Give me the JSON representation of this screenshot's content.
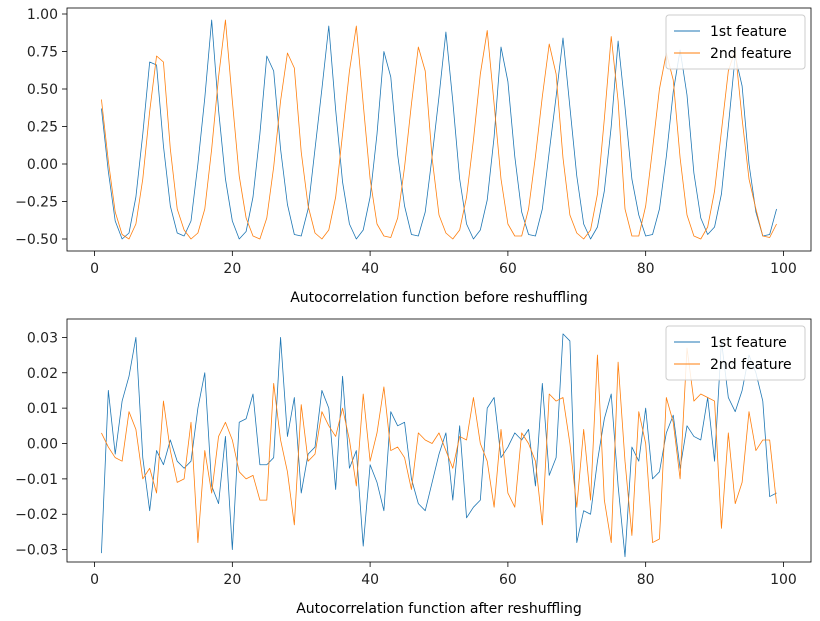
{
  "chart_data": [
    {
      "type": "line",
      "xlabel": "Autocorrelation function before reshuffling",
      "ylabel": "",
      "xlim": [
        -4,
        104
      ],
      "ylim": [
        -0.58,
        1.04
      ],
      "xticks": [
        0,
        20,
        40,
        60,
        80,
        100
      ],
      "yticks": [
        -0.5,
        -0.25,
        0.0,
        0.25,
        0.5,
        0.75,
        1.0
      ],
      "ytick_labels": [
        "−0.50",
        "−0.25",
        "0.00",
        "0.25",
        "0.50",
        "0.75",
        "1.00"
      ],
      "legend_position": "top-right",
      "grid": false,
      "x": [
        1,
        2,
        3,
        4,
        5,
        6,
        7,
        8,
        9,
        10,
        11,
        12,
        13,
        14,
        15,
        16,
        17,
        18,
        19,
        20,
        21,
        22,
        23,
        24,
        25,
        26,
        27,
        28,
        29,
        30,
        31,
        32,
        33,
        34,
        35,
        36,
        37,
        38,
        39,
        40,
        41,
        42,
        43,
        44,
        45,
        46,
        47,
        48,
        49,
        50,
        51,
        52,
        53,
        54,
        55,
        56,
        57,
        58,
        59,
        60,
        61,
        62,
        63,
        64,
        65,
        66,
        67,
        68,
        69,
        70,
        71,
        72,
        73,
        74,
        75,
        76,
        77,
        78,
        79,
        80,
        81,
        82,
        83,
        84,
        85,
        86,
        87,
        88,
        89,
        90,
        91,
        92,
        93,
        94,
        95,
        96,
        97,
        98,
        99
      ],
      "series": [
        {
          "name": "1st feature",
          "color": "#1f77b4",
          "values": [
            0.37,
            -0.05,
            -0.38,
            -0.5,
            -0.46,
            -0.22,
            0.2,
            0.68,
            0.66,
            0.12,
            -0.28,
            -0.46,
            -0.48,
            -0.38,
            0.0,
            0.44,
            0.96,
            0.36,
            -0.1,
            -0.38,
            -0.5,
            -0.45,
            -0.22,
            0.2,
            0.72,
            0.62,
            0.1,
            -0.27,
            -0.47,
            -0.48,
            -0.3,
            0.1,
            0.5,
            0.92,
            0.36,
            -0.12,
            -0.4,
            -0.5,
            -0.44,
            -0.22,
            0.2,
            0.75,
            0.58,
            0.06,
            -0.28,
            -0.47,
            -0.48,
            -0.32,
            0.05,
            0.45,
            0.88,
            0.42,
            -0.1,
            -0.4,
            -0.5,
            -0.44,
            -0.24,
            0.18,
            0.78,
            0.55,
            0.05,
            -0.32,
            -0.47,
            -0.48,
            -0.3,
            0.08,
            0.45,
            0.84,
            0.38,
            -0.08,
            -0.4,
            -0.5,
            -0.42,
            -0.18,
            0.25,
            0.82,
            0.38,
            -0.1,
            -0.34,
            -0.48,
            -0.47,
            -0.3,
            0.05,
            0.48,
            0.76,
            0.46,
            -0.06,
            -0.36,
            -0.47,
            -0.42,
            -0.2,
            0.25,
            0.72,
            0.52,
            0.0,
            -0.32,
            -0.48,
            -0.47,
            -0.3
          ]
        },
        {
          "name": "2nd feature",
          "color": "#ff7f0e",
          "values": [
            0.43,
            0.02,
            -0.32,
            -0.47,
            -0.5,
            -0.4,
            -0.1,
            0.35,
            0.72,
            0.68,
            0.1,
            -0.3,
            -0.44,
            -0.5,
            -0.46,
            -0.3,
            0.1,
            0.58,
            0.96,
            0.42,
            -0.08,
            -0.36,
            -0.48,
            -0.5,
            -0.36,
            -0.02,
            0.42,
            0.74,
            0.64,
            0.08,
            -0.28,
            -0.46,
            -0.5,
            -0.44,
            -0.22,
            0.2,
            0.62,
            0.92,
            0.4,
            -0.1,
            -0.4,
            -0.48,
            -0.49,
            -0.36,
            -0.02,
            0.4,
            0.78,
            0.62,
            0.04,
            -0.34,
            -0.46,
            -0.5,
            -0.44,
            -0.22,
            0.16,
            0.6,
            0.89,
            0.4,
            -0.1,
            -0.4,
            -0.48,
            -0.48,
            -0.3,
            0.05,
            0.45,
            0.8,
            0.6,
            0.04,
            -0.34,
            -0.46,
            -0.5,
            -0.44,
            -0.2,
            0.3,
            0.85,
            0.42,
            -0.3,
            -0.48,
            -0.48,
            -0.28,
            0.1,
            0.5,
            0.74,
            0.56,
            0.04,
            -0.34,
            -0.48,
            -0.5,
            -0.42,
            -0.18,
            0.22,
            0.62,
            0.76,
            0.3,
            -0.1,
            -0.3,
            -0.48,
            -0.49,
            -0.4
          ]
        }
      ]
    },
    {
      "type": "line",
      "xlabel": "Autocorrelation function after reshuffling",
      "ylabel": "",
      "xlim": [
        -4,
        104
      ],
      "ylim": [
        -0.0335,
        0.0352
      ],
      "xticks": [
        0,
        20,
        40,
        60,
        80,
        100
      ],
      "yticks": [
        -0.03,
        -0.02,
        -0.01,
        0.0,
        0.01,
        0.02,
        0.03
      ],
      "ytick_labels": [
        "−0.03",
        "−0.02",
        "−0.01",
        "0.00",
        "0.01",
        "0.02",
        "0.03"
      ],
      "legend_position": "top-right",
      "grid": false,
      "x": [
        1,
        2,
        3,
        4,
        5,
        6,
        7,
        8,
        9,
        10,
        11,
        12,
        13,
        14,
        15,
        16,
        17,
        18,
        19,
        20,
        21,
        22,
        23,
        24,
        25,
        26,
        27,
        28,
        29,
        30,
        31,
        32,
        33,
        34,
        35,
        36,
        37,
        38,
        39,
        40,
        41,
        42,
        43,
        44,
        45,
        46,
        47,
        48,
        49,
        50,
        51,
        52,
        53,
        54,
        55,
        56,
        57,
        58,
        59,
        60,
        61,
        62,
        63,
        64,
        65,
        66,
        67,
        68,
        69,
        70,
        71,
        72,
        73,
        74,
        75,
        76,
        77,
        78,
        79,
        80,
        81,
        82,
        83,
        84,
        85,
        86,
        87,
        88,
        89,
        90,
        91,
        92,
        93,
        94,
        95,
        96,
        97,
        98,
        99
      ],
      "series": [
        {
          "name": "1st feature",
          "color": "#1f77b4",
          "values": [
            -0.031,
            0.015,
            -0.003,
            0.012,
            0.019,
            0.03,
            -0.004,
            -0.019,
            -0.002,
            -0.006,
            0.001,
            -0.005,
            -0.007,
            -0.005,
            0.01,
            0.02,
            -0.012,
            -0.017,
            0.002,
            -0.03,
            0.006,
            0.007,
            0.014,
            -0.006,
            -0.006,
            -0.004,
            0.03,
            0.002,
            0.013,
            -0.014,
            -0.003,
            -0.001,
            0.015,
            0.01,
            -0.013,
            0.019,
            -0.007,
            -0.002,
            -0.029,
            -0.006,
            -0.011,
            -0.019,
            0.009,
            0.005,
            0.006,
            -0.01,
            -0.017,
            -0.019,
            -0.011,
            -0.003,
            0.003,
            -0.016,
            0.005,
            -0.021,
            -0.018,
            -0.016,
            0.01,
            0.013,
            -0.004,
            -0.001,
            0.003,
            0.001,
            0.004,
            -0.012,
            0.017,
            -0.009,
            -0.004,
            0.031,
            0.029,
            -0.028,
            -0.019,
            -0.02,
            -0.005,
            0.007,
            0.014,
            -0.012,
            -0.032,
            -0.001,
            -0.005,
            0.01,
            -0.01,
            -0.008,
            0.003,
            0.008,
            -0.007,
            0.005,
            0.002,
            0.001,
            0.013,
            -0.005,
            0.029,
            0.013,
            0.009,
            0.015,
            0.025,
            0.02,
            0.012,
            -0.015,
            -0.014
          ]
        },
        {
          "name": "2nd feature",
          "color": "#ff7f0e",
          "values": [
            0.003,
            -0.001,
            -0.004,
            -0.005,
            0.009,
            0.004,
            -0.01,
            -0.007,
            -0.014,
            0.012,
            -0.002,
            -0.011,
            -0.01,
            0.006,
            -0.028,
            -0.002,
            -0.014,
            0.002,
            0.006,
            0.001,
            -0.008,
            -0.01,
            -0.009,
            -0.016,
            -0.016,
            0.017,
            0.001,
            -0.008,
            -0.023,
            0.011,
            -0.005,
            -0.003,
            0.009,
            0.005,
            0.002,
            0.01,
            0.001,
            -0.012,
            0.014,
            -0.005,
            0.003,
            0.016,
            -0.002,
            -0.001,
            -0.004,
            -0.013,
            0.003,
            0.001,
            0.0,
            0.003,
            -0.002,
            -0.007,
            0.002,
            0.001,
            0.013,
            0.0,
            -0.005,
            -0.018,
            0.004,
            -0.014,
            -0.018,
            0.003,
            0.0,
            -0.005,
            -0.023,
            0.014,
            0.012,
            0.013,
            0.0,
            -0.018,
            0.004,
            -0.016,
            0.025,
            -0.016,
            -0.028,
            0.023,
            -0.005,
            -0.026,
            0.009,
            0.0,
            -0.028,
            -0.027,
            0.013,
            0.006,
            -0.01,
            0.027,
            0.012,
            0.014,
            0.013,
            0.012,
            -0.024,
            0.003,
            -0.017,
            -0.011,
            0.009,
            -0.002,
            0.001,
            0.001,
            -0.017
          ]
        }
      ]
    }
  ]
}
